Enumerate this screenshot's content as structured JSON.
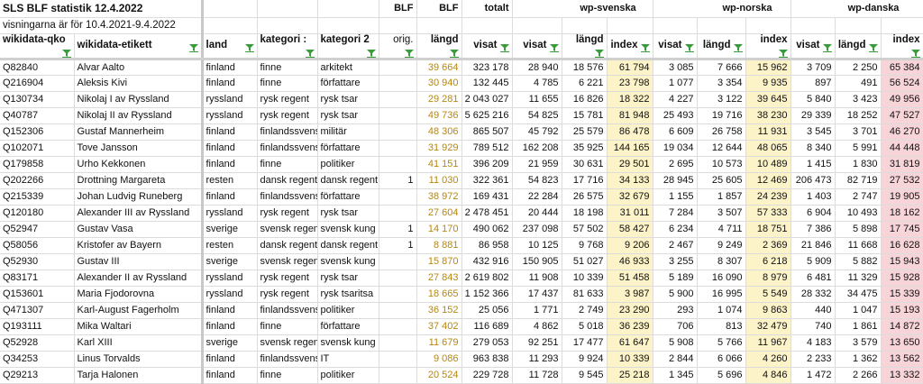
{
  "title": "SLS BLF statistik 12.4.2022",
  "subtitle": "visningarna är för 10.4.2021-9.4.2022",
  "group_headers": {
    "blf1": "BLF",
    "blf2": "BLF",
    "totalt": "totalt",
    "sv": "wp-svenska",
    "no": "wp-norska",
    "da": "wp-danska"
  },
  "columns": [
    "wikidata-qko",
    "wikidata-etikett",
    "land",
    "kategori 1",
    "kategori 2",
    "orig.",
    "längd",
    "visat",
    "visat",
    "längd",
    "index",
    "visat",
    "längd",
    "index",
    "visat",
    "längd",
    "index"
  ],
  "column_display": [
    "wikidata-qko",
    "wikidata-etikett",
    "land",
    "kategori :",
    "kategori 2",
    "orig.",
    "längd",
    "visat",
    "visat",
    "längd",
    "index",
    "visat",
    "längd",
    "index",
    "visat",
    "längd",
    "index"
  ],
  "rows": [
    [
      "Q82840",
      "Alvar Aalto",
      "finland",
      "finne",
      "arkitekt",
      "",
      "39 664",
      "323 178",
      "28 940",
      "18 576",
      "61 794",
      "3 085",
      "7 666",
      "15 962",
      "3 709",
      "2 250",
      "65 384"
    ],
    [
      "Q216904",
      "Aleksis Kivi",
      "finland",
      "finne",
      "författare",
      "",
      "30 940",
      "132 445",
      "4 785",
      "6 221",
      "23 798",
      "1 077",
      "3 354",
      "9 935",
      "897",
      "491",
      "56 524"
    ],
    [
      "Q130734",
      "Nikolaj I av Ryssland",
      "ryssland",
      "rysk regent",
      "rysk tsar",
      "",
      "29 281",
      "2 043 027",
      "11 655",
      "16 826",
      "18 322",
      "4 227",
      "3 122",
      "39 645",
      "5 840",
      "3 423",
      "49 956"
    ],
    [
      "Q40787",
      "Nikolaj II av Ryssland",
      "ryssland",
      "rysk regent",
      "rysk tsar",
      "",
      "49 736",
      "5 625 216",
      "54 825",
      "15 781",
      "81 948",
      "25 493",
      "19 716",
      "38 230",
      "29 339",
      "18 252",
      "47 527"
    ],
    [
      "Q152306",
      "Gustaf Mannerheim",
      "finland",
      "finlandssvensk",
      "militär",
      "",
      "48 306",
      "865 507",
      "45 792",
      "25 579",
      "86 478",
      "6 609",
      "26 758",
      "11 931",
      "3 545",
      "3 701",
      "46 270"
    ],
    [
      "Q102071",
      "Tove Jansson",
      "finland",
      "finlandssvensk",
      "författare",
      "",
      "31 929",
      "789 512",
      "162 208",
      "35 925",
      "144 165",
      "19 034",
      "12 644",
      "48 065",
      "8 340",
      "5 991",
      "44 448"
    ],
    [
      "Q179858",
      "Urho Kekkonen",
      "finland",
      "finne",
      "politiker",
      "",
      "41 151",
      "396 209",
      "21 959",
      "30 631",
      "29 501",
      "2 695",
      "10 573",
      "10 489",
      "1 415",
      "1 830",
      "31 819"
    ],
    [
      "Q202266",
      "Drottning Margareta",
      "resten",
      "dansk regent",
      "dansk regent",
      "1",
      "11 030",
      "322 361",
      "54 823",
      "17 716",
      "34 133",
      "28 945",
      "25 605",
      "12 469",
      "206 473",
      "82 719",
      "27 532"
    ],
    [
      "Q215339",
      "Johan Ludvig Runeberg",
      "finland",
      "finlandssvensk",
      "författare",
      "",
      "38 972",
      "169 431",
      "22 284",
      "26 575",
      "32 679",
      "1 155",
      "1 857",
      "24 239",
      "1 403",
      "2 747",
      "19 905"
    ],
    [
      "Q120180",
      "Alexander III av Ryssland",
      "ryssland",
      "rysk regent",
      "rysk tsar",
      "",
      "27 604",
      "2 478 451",
      "20 444",
      "18 198",
      "31 011",
      "7 284",
      "3 507",
      "57 333",
      "6 904",
      "10 493",
      "18 162"
    ],
    [
      "Q52947",
      "Gustav Vasa",
      "sverige",
      "svensk regent",
      "svensk kung",
      "1",
      "14 170",
      "490 062",
      "237 098",
      "57 502",
      "58 427",
      "6 234",
      "4 711",
      "18 751",
      "7 386",
      "5 898",
      "17 745"
    ],
    [
      "Q58056",
      "Kristofer av Bayern",
      "resten",
      "dansk regent",
      "dansk regent",
      "1",
      "8 881",
      "86 958",
      "10 125",
      "9 768",
      "9 206",
      "2 467",
      "9 249",
      "2 369",
      "21 846",
      "11 668",
      "16 628"
    ],
    [
      "Q52930",
      "Gustav III",
      "sverige",
      "svensk regent",
      "svensk kung",
      "",
      "15 870",
      "432 916",
      "150 905",
      "51 027",
      "46 933",
      "3 255",
      "8 307",
      "6 218",
      "5 909",
      "5 882",
      "15 943"
    ],
    [
      "Q83171",
      "Alexander II av Ryssland",
      "ryssland",
      "rysk regent",
      "rysk tsar",
      "",
      "27 843",
      "2 619 802",
      "11 908",
      "10 339",
      "51 458",
      "5 189",
      "16 090",
      "8 979",
      "6 481",
      "11 329",
      "15 928"
    ],
    [
      "Q153601",
      "Maria Fjodorovna",
      "ryssland",
      "rysk regent",
      "rysk tsaritsa",
      "",
      "18 665",
      "1 152 366",
      "17 437",
      "81 633",
      "3 987",
      "5 900",
      "16 995",
      "5 549",
      "28 332",
      "34 475",
      "15 339"
    ],
    [
      "Q471307",
      "Karl-August Fagerholm",
      "finland",
      "finlandssvensk",
      "politiker",
      "",
      "36 152",
      "25 056",
      "1 771",
      "2 749",
      "23 290",
      "293",
      "1 074",
      "9 863",
      "440",
      "1 047",
      "15 193"
    ],
    [
      "Q193111",
      "Mika Waltari",
      "finland",
      "finne",
      "författare",
      "",
      "37 402",
      "116 689",
      "4 862",
      "5 018",
      "36 239",
      "706",
      "813",
      "32 479",
      "740",
      "1 861",
      "14 872"
    ],
    [
      "Q52928",
      "Karl XIII",
      "sverige",
      "svensk regent",
      "svensk kung",
      "",
      "11 679",
      "279 053",
      "92 251",
      "17 477",
      "61 647",
      "5 908",
      "5 766",
      "11 967",
      "4 183",
      "3 579",
      "13 650"
    ],
    [
      "Q34253",
      "Linus Torvalds",
      "finland",
      "finlandssvensk",
      "IT",
      "",
      "9 086",
      "963 838",
      "11 293",
      "9 924",
      "10 339",
      "2 844",
      "6 066",
      "4 260",
      "2 233",
      "1 362",
      "13 562"
    ],
    [
      "Q29213",
      "Tarja Halonen",
      "finland",
      "finne",
      "politiker",
      "",
      "20 524",
      "229 728",
      "11 728",
      "9 545",
      "25 218",
      "1 345",
      "5 696",
      "4 846",
      "1 472",
      "2 266",
      "13 332"
    ]
  ],
  "colors": {
    "gold": "#b8860b",
    "index_sv_no": "#fdf3c8",
    "index_da": "#f6d4d8"
  },
  "icons": {
    "filter": "filter-icon"
  }
}
